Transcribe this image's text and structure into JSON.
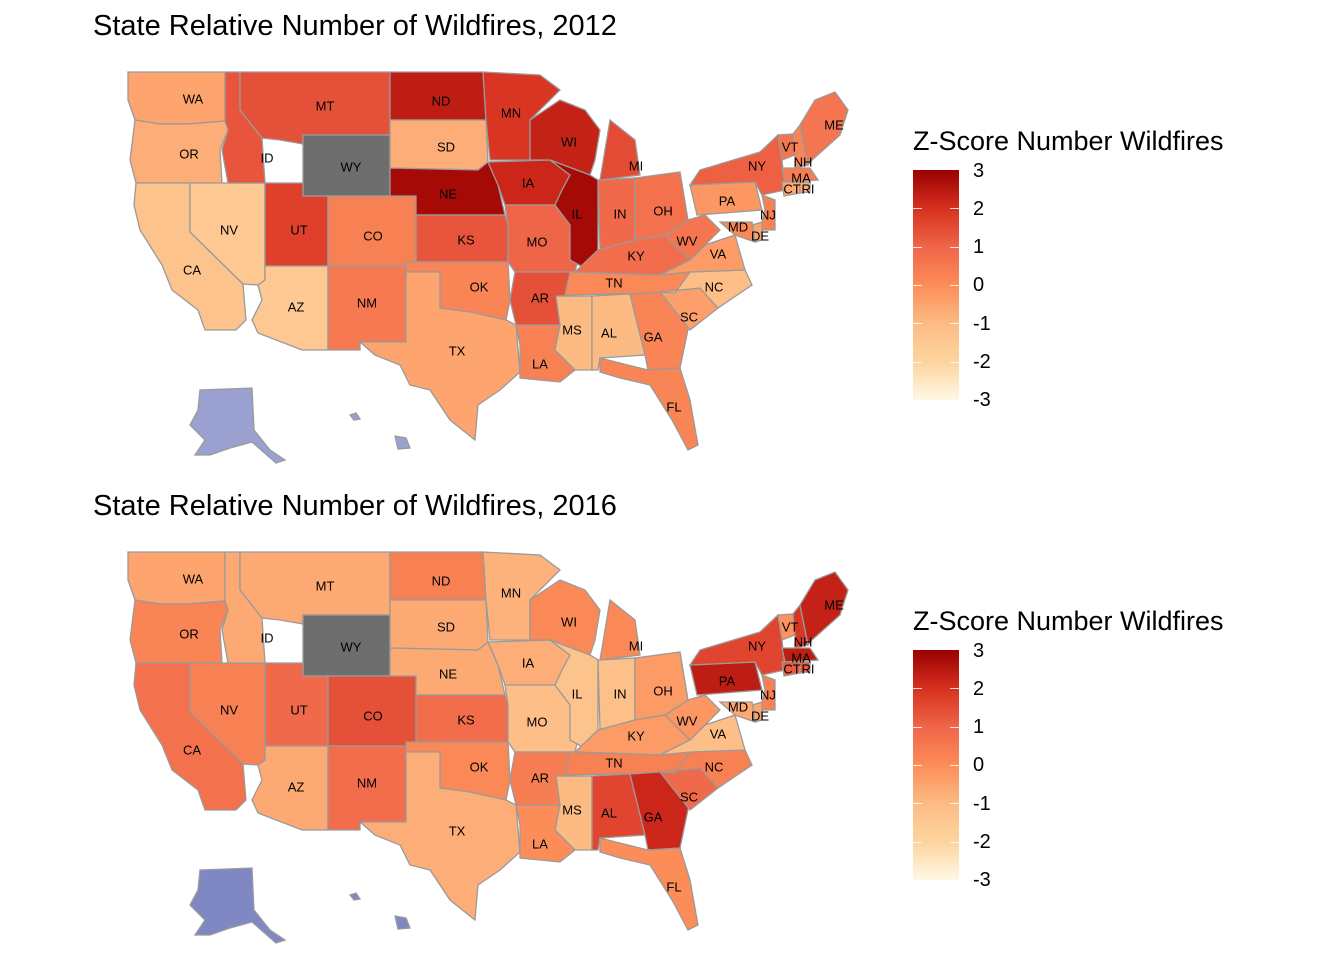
{
  "chart_data": [
    {
      "type": "choropleth",
      "title": "State Relative Number of Wildfires, 2012",
      "legend": {
        "title": "Z-Score Number Wildfires",
        "ticks": [
          "3",
          "2",
          "1",
          "0",
          "-1",
          "-2",
          "-3"
        ],
        "range": [
          -3,
          3
        ],
        "placement": "right",
        "colors": [
          "#fff7e4",
          "#fdd49e",
          "#fdbb84",
          "#fc8d59",
          "#ef6548",
          "#d7301f",
          "#990000"
        ]
      },
      "missing_color": "#6e6e6e",
      "noncontig_color": "#9aa0cf",
      "values": {
        "WA": -0.5,
        "OR": -0.7,
        "CA": -1.3,
        "NV": -1.5,
        "ID": 1.3,
        "MT": 1.4,
        "WY": null,
        "UT": 1.7,
        "AZ": -1.5,
        "CO": 0.3,
        "NM": 0.5,
        "ND": 2.4,
        "SD": -0.7,
        "NE": 2.8,
        "KS": 1.3,
        "OK": 0.2,
        "TX": -0.5,
        "MN": 1.9,
        "IA": 2.2,
        "MO": 1.0,
        "AR": 1.4,
        "LA": 0.3,
        "WI": 2.3,
        "IL": 2.8,
        "MI": 1.5,
        "IN": 0.9,
        "OH": 0.7,
        "KY": 0.8,
        "TN": 0.1,
        "MS": -1.0,
        "AL": -1.0,
        "GA": 0.2,
        "FL": 0.2,
        "SC": -0.4,
        "NC": -1.1,
        "VA": -0.3,
        "WV": 0.6,
        "PA": -0.2,
        "NY": 1.1,
        "VT": 0.6,
        "NH": 0.2,
        "ME": 0.6,
        "MA": 0.4,
        "CT": -0.6,
        "RI": -0.6,
        "NJ": 0.3,
        "DE": -0.5,
        "MD": 0.1
      }
    },
    {
      "type": "choropleth",
      "title": "State Relative Number of Wildfires, 2016",
      "legend": {
        "title": "Z-Score Number Wildfires",
        "ticks": [
          "3",
          "2",
          "1",
          "0",
          "-1",
          "-2",
          "-3"
        ],
        "range": [
          -3,
          3
        ],
        "placement": "right",
        "colors": [
          "#fff7e4",
          "#fdd49e",
          "#fdbb84",
          "#fc8d59",
          "#ef6548",
          "#d7301f",
          "#990000"
        ]
      },
      "missing_color": "#6e6e6e",
      "noncontig_color": "#8088c4",
      "values": {
        "WA": -0.5,
        "OR": 0.2,
        "CA": 0.7,
        "NV": 0.3,
        "ID": -0.6,
        "MT": -0.6,
        "WY": null,
        "UT": 0.9,
        "AZ": -0.6,
        "CO": 1.4,
        "NM": 0.8,
        "ND": 0.3,
        "SD": -0.6,
        "NE": -0.6,
        "KS": 0.8,
        "OK": 0.1,
        "TX": -0.7,
        "MN": -0.8,
        "IA": -0.7,
        "MO": -1.1,
        "AR": 0.4,
        "LA": 0.0,
        "WI": 0.1,
        "IL": -1.3,
        "MI": 0.1,
        "IN": -1.2,
        "OH": -0.3,
        "KY": -0.3,
        "TN": 0.3,
        "MS": -1.0,
        "AL": 1.6,
        "GA": 2.2,
        "FL": 0.0,
        "SC": 0.9,
        "NC": 0.3,
        "VA": -1.1,
        "WV": -0.2,
        "PA": 2.4,
        "NY": 1.6,
        "VT": -0.1,
        "NH": 1.9,
        "ME": 2.3,
        "MA": 2.4,
        "CT": 1.2,
        "RI": 1.2,
        "NJ": 0.3,
        "DE": -0.5,
        "MD": -0.6
      }
    }
  ]
}
